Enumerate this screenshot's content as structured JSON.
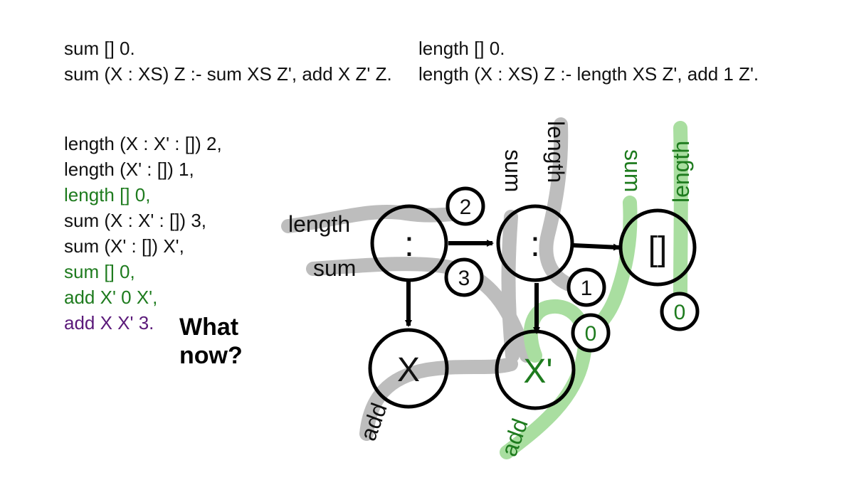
{
  "rules": {
    "sum_base": "sum [] 0.",
    "sum_rec": "sum (X : XS) Z :- sum XS Z', add X Z' Z.",
    "length_base": "length [] 0.",
    "length_rec": "length (X : XS) Z :- length XS Z', add 1 Z'."
  },
  "goals": [
    {
      "text": "length (X : X' : []) 2,",
      "status": "pending"
    },
    {
      "text": "length (X' : []) 1,",
      "status": "pending"
    },
    {
      "text": "length [] 0,",
      "status": "solved"
    },
    {
      "text": "sum (X : X' : []) 3,",
      "status": "pending"
    },
    {
      "text": "sum (X' : []) X',",
      "status": "pending"
    },
    {
      "text": "sum [] 0,",
      "status": "solved"
    },
    {
      "text": "add X' 0 X',",
      "status": "solved"
    },
    {
      "text": "add X X' 3.",
      "status": "current"
    }
  ],
  "prompt": {
    "line1": "What",
    "line2": "now?"
  },
  "diagram": {
    "nodes": {
      "cons1": ":",
      "cons2": ":",
      "nil": "[]",
      "x": "X",
      "xprime": "X'"
    },
    "values": {
      "length_outer": "2",
      "sum_outer": "3",
      "length_inner": "1",
      "sum_inner": "0",
      "length_nil": "0"
    },
    "strand_labels": {
      "length_left": "length",
      "sum_left": "sum",
      "sum_mid": "sum",
      "length_mid": "length",
      "sum_right": "sum",
      "length_right": "length",
      "add_x": "add",
      "add_xprime": "add"
    }
  },
  "colors": {
    "text": "#111111",
    "solved": "#1e7b1e",
    "current": "#5b1a7a",
    "strand_gray": "#bdbdbd",
    "strand_green": "#a9dea0"
  }
}
